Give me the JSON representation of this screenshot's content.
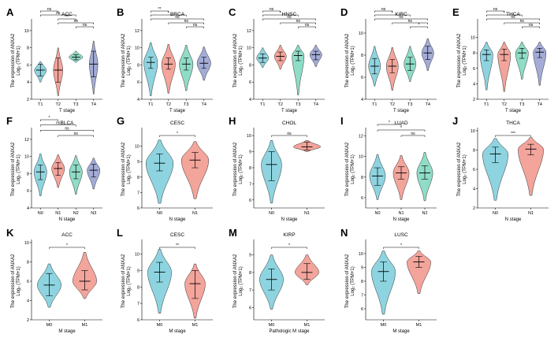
{
  "figure": {
    "ylabel_line1": "The expression of ANXA2",
    "ylabel_line2": "Log₂ (TPM+1)",
    "colors": {
      "g1": "#8ed4e0",
      "g2": "#f3a49b",
      "g3": "#8fdcc7",
      "g4": "#a3acd6",
      "edge": "#333333",
      "line": "#000000"
    }
  },
  "chart_data": [
    {
      "id": "A",
      "type": "violin",
      "title": "ACC",
      "xlabel": "T stage",
      "categories": [
        "T1",
        "T2",
        "T3",
        "T4"
      ],
      "ylim": [
        2,
        11
      ],
      "yticks": [
        2,
        4,
        6,
        8,
        10
      ],
      "groups": [
        {
          "min": 4.0,
          "q1": 4.7,
          "median": 5.4,
          "q3": 6.1,
          "max": 6.4,
          "width": 0.7
        },
        {
          "min": 2.4,
          "q1": 4.0,
          "median": 5.4,
          "q3": 6.8,
          "max": 8.0,
          "width": 0.55
        },
        {
          "min": 6.3,
          "q1": 6.6,
          "median": 6.9,
          "q3": 7.2,
          "max": 7.6,
          "width": 0.8
        },
        {
          "min": 2.6,
          "q1": 4.6,
          "median": 6.1,
          "q3": 7.6,
          "max": 8.8,
          "width": 0.5
        }
      ],
      "comparisons": [
        {
          "from": 0,
          "to": 1,
          "label": "ns"
        },
        {
          "from": 0,
          "to": 2,
          "label": "ns"
        },
        {
          "from": 1,
          "to": 2,
          "label": "***"
        },
        {
          "from": 1,
          "to": 3,
          "label": "ns"
        },
        {
          "from": 2,
          "to": 3,
          "label": "ns"
        }
      ]
    },
    {
      "id": "B",
      "type": "violin",
      "title": "BRCA",
      "xlabel": "T stage",
      "categories": [
        "T1",
        "T2",
        "T3",
        "T4"
      ],
      "ylim": [
        4,
        13
      ],
      "yticks": [
        4,
        6,
        8,
        10,
        12
      ],
      "groups": [
        {
          "min": 4.4,
          "q1": 7.6,
          "median": 8.3,
          "q3": 8.9,
          "max": 10.6,
          "width": 0.8
        },
        {
          "min": 4.7,
          "q1": 7.5,
          "median": 8.1,
          "q3": 8.8,
          "max": 10.4,
          "width": 0.8
        },
        {
          "min": 5.0,
          "q1": 7.4,
          "median": 8.1,
          "q3": 8.8,
          "max": 10.3,
          "width": 0.8
        },
        {
          "min": 6.2,
          "q1": 7.6,
          "median": 8.2,
          "q3": 8.9,
          "max": 10.1,
          "width": 0.8
        }
      ],
      "comparisons": [
        {
          "from": 0,
          "to": 1,
          "label": "**"
        },
        {
          "from": 0,
          "to": 2,
          "label": "*"
        },
        {
          "from": 0,
          "to": 3,
          "label": "ns"
        },
        {
          "from": 1,
          "to": 3,
          "label": "ns"
        },
        {
          "from": 2,
          "to": 3,
          "label": "ns"
        }
      ]
    },
    {
      "id": "C",
      "type": "violin",
      "title": "HNSC",
      "xlabel": "T stage",
      "categories": [
        "T1",
        "T2",
        "T3",
        "T4"
      ],
      "ylim": [
        4,
        13
      ],
      "yticks": [
        4,
        6,
        8,
        10,
        12
      ],
      "groups": [
        {
          "min": 7.7,
          "q1": 8.3,
          "median": 8.8,
          "q3": 9.3,
          "max": 10.0,
          "width": 0.7
        },
        {
          "min": 7.5,
          "q1": 8.5,
          "median": 9.0,
          "q3": 9.5,
          "max": 10.3,
          "width": 0.7
        },
        {
          "min": 4.5,
          "q1": 8.5,
          "median": 9.1,
          "q3": 9.6,
          "max": 10.3,
          "width": 0.7
        },
        {
          "min": 7.8,
          "q1": 8.6,
          "median": 9.2,
          "q3": 9.6,
          "max": 10.3,
          "width": 0.7
        }
      ],
      "comparisons": [
        {
          "from": 0,
          "to": 1,
          "label": "ns"
        },
        {
          "from": 0,
          "to": 2,
          "label": "*"
        },
        {
          "from": 0,
          "to": 3,
          "label": "ns"
        },
        {
          "from": 1,
          "to": 3,
          "label": "ns"
        },
        {
          "from": 2,
          "to": 3,
          "label": "ns"
        }
      ]
    },
    {
      "id": "D",
      "type": "violin",
      "title": "KIRC",
      "xlabel": "T stage",
      "categories": [
        "T1",
        "T2",
        "T3",
        "T4"
      ],
      "ylim": [
        4,
        11
      ],
      "yticks": [
        4,
        6,
        8,
        10
      ],
      "groups": [
        {
          "min": 5.2,
          "q1": 6.3,
          "median": 7.0,
          "q3": 7.7,
          "max": 8.8,
          "width": 0.7
        },
        {
          "min": 4.8,
          "q1": 6.4,
          "median": 7.0,
          "q3": 7.6,
          "max": 8.7,
          "width": 0.7
        },
        {
          "min": 5.6,
          "q1": 6.6,
          "median": 7.2,
          "q3": 7.8,
          "max": 8.8,
          "width": 0.7
        },
        {
          "min": 6.6,
          "q1": 7.6,
          "median": 8.2,
          "q3": 8.8,
          "max": 9.5,
          "width": 0.7
        }
      ],
      "comparisons": [
        {
          "from": 0,
          "to": 1,
          "label": "ns"
        },
        {
          "from": 0,
          "to": 2,
          "label": "*"
        },
        {
          "from": 0,
          "to": 3,
          "label": "ns"
        },
        {
          "from": 1,
          "to": 3,
          "label": "ns"
        },
        {
          "from": 2,
          "to": 3,
          "label": "*"
        }
      ]
    },
    {
      "id": "E",
      "type": "violin",
      "title": "THCA",
      "xlabel": "T stage",
      "categories": [
        "T1",
        "T2",
        "T3",
        "T4"
      ],
      "ylim": [
        2,
        12
      ],
      "yticks": [
        2,
        4,
        6,
        8,
        10
      ],
      "groups": [
        {
          "min": 3.2,
          "q1": 7.0,
          "median": 7.8,
          "q3": 8.4,
          "max": 9.4,
          "width": 0.75
        },
        {
          "min": 3.0,
          "q1": 7.0,
          "median": 7.8,
          "q3": 8.5,
          "max": 9.4,
          "width": 0.75
        },
        {
          "min": 4.6,
          "q1": 7.3,
          "median": 8.0,
          "q3": 8.6,
          "max": 9.4,
          "width": 0.75
        },
        {
          "min": 3.8,
          "q1": 7.4,
          "median": 8.1,
          "q3": 8.6,
          "max": 9.4,
          "width": 0.75
        }
      ],
      "comparisons": [
        {
          "from": 0,
          "to": 1,
          "label": "ns"
        },
        {
          "from": 0,
          "to": 2,
          "label": "*"
        },
        {
          "from": 0,
          "to": 3,
          "label": "ns"
        },
        {
          "from": 1,
          "to": 3,
          "label": "ns"
        },
        {
          "from": 2,
          "to": 3,
          "label": "ns"
        }
      ]
    },
    {
      "id": "F",
      "type": "violin",
      "title": "BLCA",
      "xlabel": "N stage",
      "categories": [
        "N0",
        "N1",
        "N2",
        "N3"
      ],
      "ylim": [
        4,
        13
      ],
      "yticks": [
        4,
        6,
        8,
        10,
        12
      ],
      "groups": [
        {
          "min": 5.4,
          "q1": 7.3,
          "median": 8.2,
          "q3": 9.0,
          "max": 10.3,
          "width": 0.75
        },
        {
          "min": 6.4,
          "q1": 7.8,
          "median": 8.6,
          "q3": 9.3,
          "max": 10.2,
          "width": 0.75
        },
        {
          "min": 5.6,
          "q1": 7.4,
          "median": 8.2,
          "q3": 9.0,
          "max": 10.1,
          "width": 0.75
        },
        {
          "min": 6.2,
          "q1": 7.6,
          "median": 8.4,
          "q3": 9.1,
          "max": 9.8,
          "width": 0.75
        }
      ],
      "comparisons": [
        {
          "from": 0,
          "to": 1,
          "label": "*"
        },
        {
          "from": 0,
          "to": 2,
          "label": "ns"
        },
        {
          "from": 0,
          "to": 3,
          "label": "ns"
        },
        {
          "from": 1,
          "to": 3,
          "label": "ns"
        }
      ]
    },
    {
      "id": "G",
      "type": "violin",
      "title": "CESC",
      "xlabel": "N stage",
      "categories": [
        "N0",
        "N1"
      ],
      "ylim": [
        6,
        11
      ],
      "yticks": [
        6,
        7,
        8,
        9,
        10
      ],
      "groups": [
        {
          "min": 6.3,
          "q1": 8.4,
          "median": 8.9,
          "q3": 9.5,
          "max": 10.4,
          "width": 0.8
        },
        {
          "min": 6.6,
          "q1": 8.6,
          "median": 9.1,
          "q3": 9.6,
          "max": 10.3,
          "width": 0.8
        }
      ],
      "comparisons": [
        {
          "from": 0,
          "to": 1,
          "label": "*"
        }
      ]
    },
    {
      "id": "H",
      "type": "violin",
      "title": "CHOL",
      "xlabel": "N stage",
      "categories": [
        "N0",
        "N1"
      ],
      "ylim": [
        5.5,
        10.3
      ],
      "yticks": [
        6,
        7,
        8,
        9,
        10
      ],
      "groups": [
        {
          "min": 5.8,
          "q1": 7.2,
          "median": 8.2,
          "q3": 9.0,
          "max": 9.7,
          "width": 0.6
        },
        {
          "min": 9.0,
          "q1": 9.1,
          "median": 9.3,
          "q3": 9.6,
          "max": 9.7,
          "width": 0.8
        }
      ],
      "comparisons": [
        {
          "from": 0,
          "to": 1,
          "label": "ns"
        }
      ]
    },
    {
      "id": "I",
      "type": "violin",
      "title": "LUAD",
      "xlabel": "N stage",
      "categories": [
        "N0",
        "N1",
        "N2"
      ],
      "ylim": [
        5,
        12.5
      ],
      "yticks": [
        6,
        8,
        10,
        12
      ],
      "groups": [
        {
          "min": 5.8,
          "q1": 7.2,
          "median": 8.1,
          "q3": 8.9,
          "max": 10.2,
          "width": 0.7
        },
        {
          "min": 5.8,
          "q1": 7.8,
          "median": 8.4,
          "q3": 9.0,
          "max": 10.1,
          "width": 0.7
        },
        {
          "min": 5.7,
          "q1": 7.8,
          "median": 8.4,
          "q3": 9.1,
          "max": 10.4,
          "width": 0.7
        }
      ],
      "comparisons": [
        {
          "from": 0,
          "to": 1,
          "label": "*"
        },
        {
          "from": 0,
          "to": 2,
          "label": "*"
        },
        {
          "from": 1,
          "to": 2,
          "label": "ns"
        }
      ]
    },
    {
      "id": "J",
      "type": "violin",
      "title": "THCA",
      "xlabel": "N stage",
      "categories": [
        "N0",
        "N1"
      ],
      "ylim": [
        2,
        10
      ],
      "yticks": [
        2,
        4,
        6,
        8,
        10
      ],
      "groups": [
        {
          "min": 2.8,
          "q1": 6.7,
          "median": 7.6,
          "q3": 8.3,
          "max": 9.2,
          "width": 0.75
        },
        {
          "min": 3.3,
          "q1": 7.5,
          "median": 8.1,
          "q3": 8.6,
          "max": 9.3,
          "width": 0.75
        }
      ],
      "comparisons": [
        {
          "from": 0,
          "to": 1,
          "label": "***"
        }
      ]
    },
    {
      "id": "K",
      "type": "violin",
      "title": "ACC",
      "xlabel": "M stage",
      "categories": [
        "M0",
        "M1"
      ],
      "ylim": [
        2,
        10
      ],
      "yticks": [
        2,
        4,
        6,
        8,
        10
      ],
      "groups": [
        {
          "min": 3.3,
          "q1": 4.5,
          "median": 5.6,
          "q3": 6.8,
          "max": 7.8,
          "width": 0.7
        },
        {
          "min": 4.2,
          "q1": 5.1,
          "median": 6.0,
          "q3": 7.1,
          "max": 9.0,
          "width": 0.7
        }
      ],
      "comparisons": [
        {
          "from": 0,
          "to": 1,
          "label": "*"
        }
      ]
    },
    {
      "id": "L",
      "type": "violin",
      "title": "CESC",
      "xlabel": "M stage",
      "categories": [
        "M0",
        "M1"
      ],
      "ylim": [
        6,
        10.7
      ],
      "yticks": [
        6,
        7,
        8,
        9,
        10
      ],
      "groups": [
        {
          "min": 6.4,
          "q1": 8.3,
          "median": 8.9,
          "q3": 9.5,
          "max": 10.3,
          "width": 0.7
        },
        {
          "min": 6.1,
          "q1": 7.3,
          "median": 8.2,
          "q3": 9.0,
          "max": 9.4,
          "width": 0.6
        }
      ],
      "comparisons": [
        {
          "from": 0,
          "to": 1,
          "label": "**"
        }
      ]
    },
    {
      "id": "M",
      "type": "violin",
      "title": "KIRP",
      "xlabel": "Pathologic M stage",
      "categories": [
        "M0",
        "M1"
      ],
      "ylim": [
        5.3,
        9.7
      ],
      "yticks": [
        6,
        7,
        8,
        9
      ],
      "groups": [
        {
          "min": 5.9,
          "q1": 7.0,
          "median": 7.6,
          "q3": 8.2,
          "max": 9.0,
          "width": 0.7
        },
        {
          "min": 7.3,
          "q1": 7.6,
          "median": 8.0,
          "q3": 8.5,
          "max": 9.0,
          "width": 0.7
        }
      ],
      "comparisons": [
        {
          "from": 0,
          "to": 1,
          "label": "*"
        }
      ]
    },
    {
      "id": "N",
      "type": "violin",
      "title": "LUSC",
      "xlabel": "M stage",
      "categories": [
        "M0",
        "M1"
      ],
      "ylim": [
        5.2,
        10.8
      ],
      "yticks": [
        6,
        7,
        8,
        9,
        10
      ],
      "groups": [
        {
          "min": 5.6,
          "q1": 8.0,
          "median": 8.7,
          "q3": 9.4,
          "max": 10.2,
          "width": 0.7
        },
        {
          "min": 7.1,
          "q1": 9.0,
          "median": 9.4,
          "q3": 9.8,
          "max": 10.2,
          "width": 0.7
        }
      ],
      "comparisons": [
        {
          "from": 0,
          "to": 1,
          "label": "*"
        }
      ]
    }
  ]
}
